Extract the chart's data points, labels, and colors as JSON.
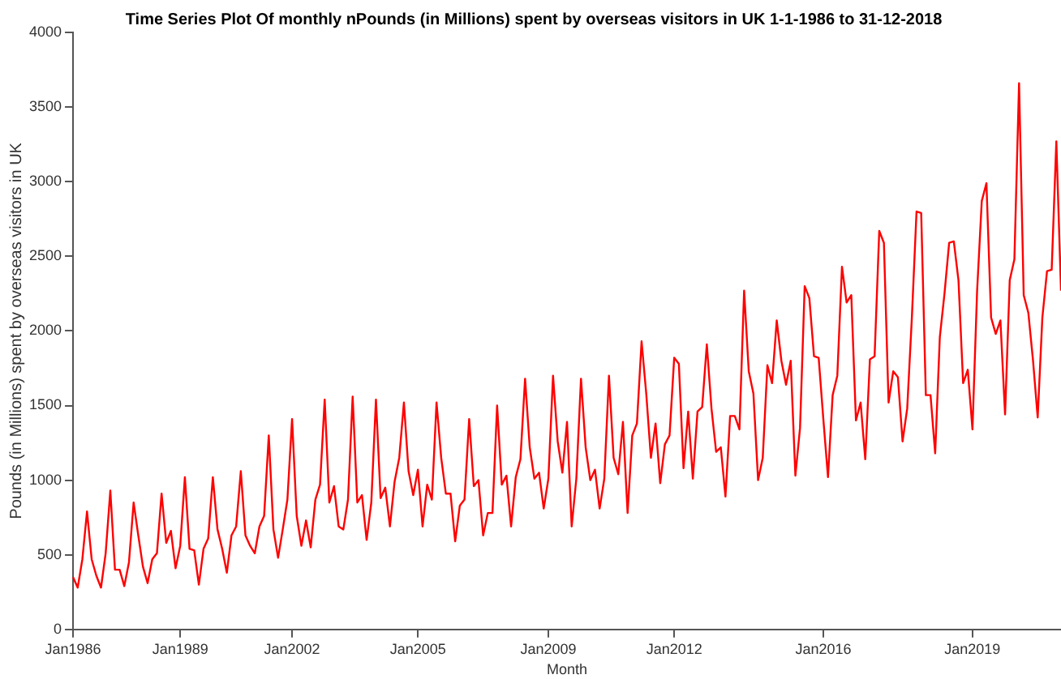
{
  "chart_data": {
    "type": "line",
    "title": "Time Series Plot Of monthly nPounds (in Millions) spent by overseas visitors in UK 1-1-1986 to 31-12-2018",
    "xlabel": "Month",
    "ylabel": "Pounds (in Millions) spent by overseas visitors in UK",
    "categories": [
      "Jan1986",
      null,
      null,
      null,
      null,
      null,
      null,
      null,
      null,
      null,
      null,
      null,
      null,
      null,
      null,
      null,
      null,
      null,
      null,
      null,
      null,
      null,
      null,
      "Jan1989",
      null,
      null,
      null,
      null,
      null,
      null,
      null,
      null,
      null,
      null,
      null,
      null,
      null,
      null,
      null,
      null,
      null,
      null,
      null,
      null,
      null,
      null,
      null,
      "Jan2002",
      null,
      null,
      null,
      null,
      null,
      null,
      null,
      null,
      null,
      null,
      null,
      null,
      null,
      null,
      null,
      null,
      null,
      null,
      null,
      null,
      null,
      null,
      null,
      null,
      null,
      null,
      "Jan2005",
      null,
      null,
      null,
      null,
      null,
      null,
      null,
      null,
      null,
      null,
      null,
      null,
      null,
      null,
      null,
      null,
      null,
      null,
      null,
      null,
      null,
      null,
      null,
      null,
      null,
      null,
      null,
      "Jan2009",
      null,
      null,
      null,
      null,
      null,
      null,
      null,
      null,
      null,
      null,
      null,
      null,
      null,
      null,
      null,
      null,
      null,
      null,
      null,
      null,
      null,
      null,
      null,
      null,
      null,
      null,
      "Jan2012",
      null,
      null,
      null,
      null,
      null,
      null,
      null,
      null,
      null,
      null,
      null,
      null,
      null,
      null,
      null,
      null,
      null,
      null,
      null,
      null,
      null,
      null,
      null,
      null,
      null,
      null,
      null,
      null,
      null,
      null,
      null,
      "Jan2016",
      null,
      null,
      null,
      null,
      null,
      null,
      null,
      null,
      null,
      null,
      null,
      null,
      null,
      null,
      null,
      null,
      null,
      null,
      null,
      null,
      null,
      null,
      null,
      null,
      null,
      null,
      null,
      null,
      null,
      null,
      null,
      "Jan2019",
      null,
      null,
      null,
      null,
      null,
      null,
      null,
      null,
      null,
      null,
      null,
      null,
      null,
      null,
      null,
      null,
      null,
      null,
      null
    ],
    "values": [
      350,
      280,
      470,
      790,
      470,
      360,
      280,
      510,
      930,
      400,
      400,
      290,
      450,
      850,
      630,
      420,
      310,
      470,
      510,
      910,
      580,
      660,
      410,
      560,
      1020,
      540,
      530,
      300,
      540,
      610,
      1020,
      670,
      540,
      380,
      630,
      690,
      1060,
      630,
      560,
      510,
      690,
      760,
      1300,
      670,
      480,
      670,
      870,
      1410,
      760,
      560,
      730,
      550,
      870,
      970,
      1540,
      850,
      960,
      690,
      670,
      870,
      1560,
      850,
      900,
      600,
      850,
      1540,
      880,
      950,
      690,
      990,
      1150,
      1520,
      1060,
      900,
      1070,
      690,
      970,
      870,
      1520,
      1150,
      910,
      910,
      590,
      830,
      870,
      1410,
      960,
      1000,
      630,
      780,
      780,
      1500,
      970,
      1030,
      690,
      1020,
      1140,
      1680,
      1220,
      1010,
      1050,
      810,
      1010,
      1700,
      1260,
      1050,
      1390,
      690,
      1010,
      1680,
      1220,
      1000,
      1070,
      810,
      1010,
      1700,
      1150,
      1040,
      1390,
      780,
      1300,
      1380,
      1930,
      1580,
      1150,
      1380,
      980,
      1240,
      1300,
      1820,
      1780,
      1080,
      1460,
      1010,
      1460,
      1490,
      1910,
      1480,
      1190,
      1220,
      890,
      1430,
      1430,
      1340,
      2270,
      1730,
      1580,
      1000,
      1150,
      1770,
      1650,
      2070,
      1800,
      1640,
      1800,
      1030,
      1350,
      2300,
      2220,
      1830,
      1820,
      1410,
      1020,
      1570,
      1700,
      2430,
      2190,
      2240,
      1400,
      1520,
      1140,
      1810,
      1830,
      2670,
      2590,
      1520,
      1730,
      1690,
      1260,
      1480,
      2090,
      2800,
      2790,
      1570,
      1570,
      1180,
      1960,
      2250,
      2590,
      2600,
      2340,
      1650,
      1740,
      1340,
      2270,
      2870,
      2990,
      2090,
      1980,
      2070,
      1440,
      2340,
      2480,
      3660,
      2240,
      2120,
      1800,
      1420,
      2090,
      2400,
      2410,
      3270,
      2270
    ],
    "color": "#ff0000",
    "ylim": [
      0,
      4000
    ],
    "yticks": [
      0,
      500,
      1000,
      1500,
      2000,
      2500,
      3000,
      3500,
      4000
    ],
    "grid": false,
    "legend": false,
    "marker": "none",
    "line_style": "solid"
  }
}
